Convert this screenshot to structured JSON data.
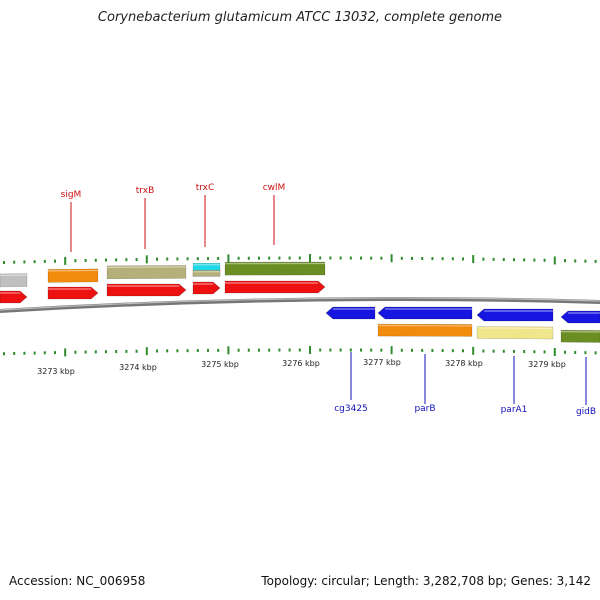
{
  "title": "Corynebacterium glutamicum ATCC 13032, complete genome",
  "footer": {
    "accession": "Accession: NC_006958",
    "stats": "Topology: circular; Length: 3,282,708 bp; Genes: 3,142"
  },
  "axis": {
    "unit": "kbp",
    "tick_labels": [
      "3273 kbp",
      "3274 kbp",
      "3275 kbp",
      "3276 kbp",
      "3277 kbp",
      "3278 kbp",
      "3279 kbp"
    ]
  },
  "colors": {
    "backbone": "#777777",
    "tick": "#2e8b2e",
    "forward_gene": "#ee1111",
    "reverse_gene": "#1616e0",
    "forward_label": "#cc1111",
    "reverse_label": "#1111bb",
    "cog_gray": "#bfbfbf",
    "cog_orange": "#f28a0c",
    "cog_khaki": "#b5b07a",
    "cog_cyan": "#22d8e8",
    "cog_olive": "#6b8e23",
    "cog_paleyellow": "#f0e68c"
  },
  "genes": {
    "forward": [
      {
        "name": "",
        "cog": "cog_gray"
      },
      {
        "name": "sigM",
        "cog": "cog_orange"
      },
      {
        "name": "trxB",
        "cog": "cog_khaki"
      },
      {
        "name": "trxC",
        "cog": "cog_cyan"
      },
      {
        "name": "cwlM",
        "cog": "cog_olive"
      }
    ],
    "reverse": [
      {
        "name": "cg3425",
        "cog": ""
      },
      {
        "name": "parB",
        "cog": "cog_orange"
      },
      {
        "name": "parA1",
        "cog": "cog_paleyellow"
      },
      {
        "name": "gidB",
        "cog": "cog_olive"
      }
    ]
  }
}
